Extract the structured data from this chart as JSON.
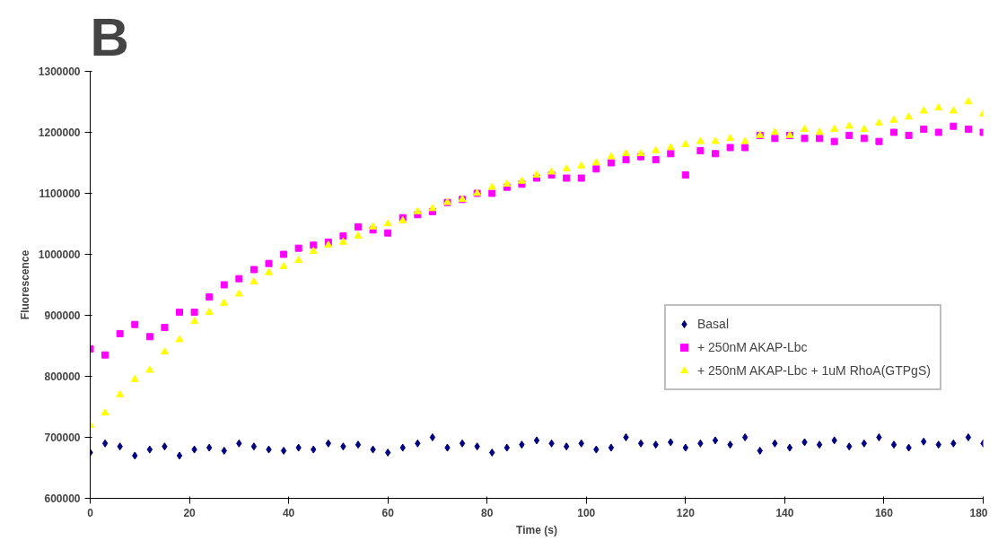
{
  "chart_data": {
    "type": "scatter",
    "title": "B",
    "xlabel": "Time (s)",
    "ylabel": "Fluorescence",
    "x": [
      0,
      3,
      6,
      9,
      12,
      15,
      18,
      21,
      24,
      27,
      30,
      33,
      36,
      39,
      42,
      45,
      48,
      51,
      54,
      57,
      60,
      63,
      66,
      69,
      72,
      75,
      78,
      81,
      84,
      87,
      90,
      93,
      96,
      99,
      102,
      105,
      108,
      111,
      114,
      117,
      120,
      123,
      126,
      129,
      132,
      135,
      138,
      141,
      144,
      147,
      150,
      153,
      156,
      159,
      162,
      165,
      168,
      171,
      174,
      177,
      180
    ],
    "series": [
      {
        "name": "Basal",
        "color": "#000080",
        "marker": "diamond",
        "values": [
          675000,
          690000,
          685000,
          670000,
          680000,
          685000,
          670000,
          680000,
          683000,
          678000,
          690000,
          685000,
          680000,
          678000,
          683000,
          680000,
          690000,
          685000,
          688000,
          680000,
          675000,
          683000,
          690000,
          700000,
          683000,
          690000,
          685000,
          675000,
          683000,
          688000,
          695000,
          690000,
          685000,
          690000,
          680000,
          683000,
          700000,
          690000,
          688000,
          692000,
          683000,
          690000,
          695000,
          688000,
          700000,
          678000,
          690000,
          683000,
          692000,
          688000,
          695000,
          685000,
          690000,
          700000,
          688000,
          683000,
          693000,
          688000,
          690000,
          700000,
          690000
        ]
      },
      {
        "name": "+ 250nM AKAP-Lbc",
        "color": "#ff00ff",
        "marker": "square",
        "values": [
          845000,
          835000,
          870000,
          885000,
          865000,
          880000,
          905000,
          905000,
          930000,
          950000,
          960000,
          975000,
          985000,
          1000000,
          1010000,
          1015000,
          1020000,
          1030000,
          1045000,
          1040000,
          1035000,
          1060000,
          1065000,
          1070000,
          1085000,
          1090000,
          1100000,
          1100000,
          1110000,
          1115000,
          1125000,
          1130000,
          1125000,
          1125000,
          1140000,
          1150000,
          1155000,
          1160000,
          1155000,
          1165000,
          1130000,
          1170000,
          1165000,
          1175000,
          1175000,
          1195000,
          1190000,
          1195000,
          1190000,
          1190000,
          1185000,
          1195000,
          1190000,
          1185000,
          1200000,
          1195000,
          1205000,
          1200000,
          1210000,
          1205000,
          1200000
        ]
      },
      {
        "name": "+ 250nM AKAP-Lbc + 1uM RhoA(GTPgS)",
        "color": "#ffff00",
        "marker": "triangle",
        "values": [
          720000,
          740000,
          770000,
          795000,
          810000,
          840000,
          860000,
          890000,
          905000,
          920000,
          935000,
          955000,
          970000,
          980000,
          990000,
          1005000,
          1015000,
          1020000,
          1030000,
          1045000,
          1050000,
          1055000,
          1070000,
          1075000,
          1085000,
          1090000,
          1100000,
          1110000,
          1115000,
          1120000,
          1130000,
          1135000,
          1140000,
          1145000,
          1150000,
          1160000,
          1165000,
          1165000,
          1170000,
          1175000,
          1180000,
          1185000,
          1185000,
          1190000,
          1185000,
          1195000,
          1200000,
          1195000,
          1205000,
          1200000,
          1205000,
          1210000,
          1205000,
          1215000,
          1220000,
          1225000,
          1235000,
          1240000,
          1235000,
          1250000,
          1230000
        ]
      }
    ],
    "xlim": [
      0,
      180
    ],
    "xticks": [
      0,
      20,
      40,
      60,
      80,
      100,
      120,
      140,
      160,
      180
    ],
    "ylim": [
      600000,
      1300000
    ],
    "yticks": [
      600000,
      700000,
      800000,
      900000,
      1000000,
      1100000,
      1200000,
      1300000
    ],
    "grid": false,
    "legend": "right"
  }
}
